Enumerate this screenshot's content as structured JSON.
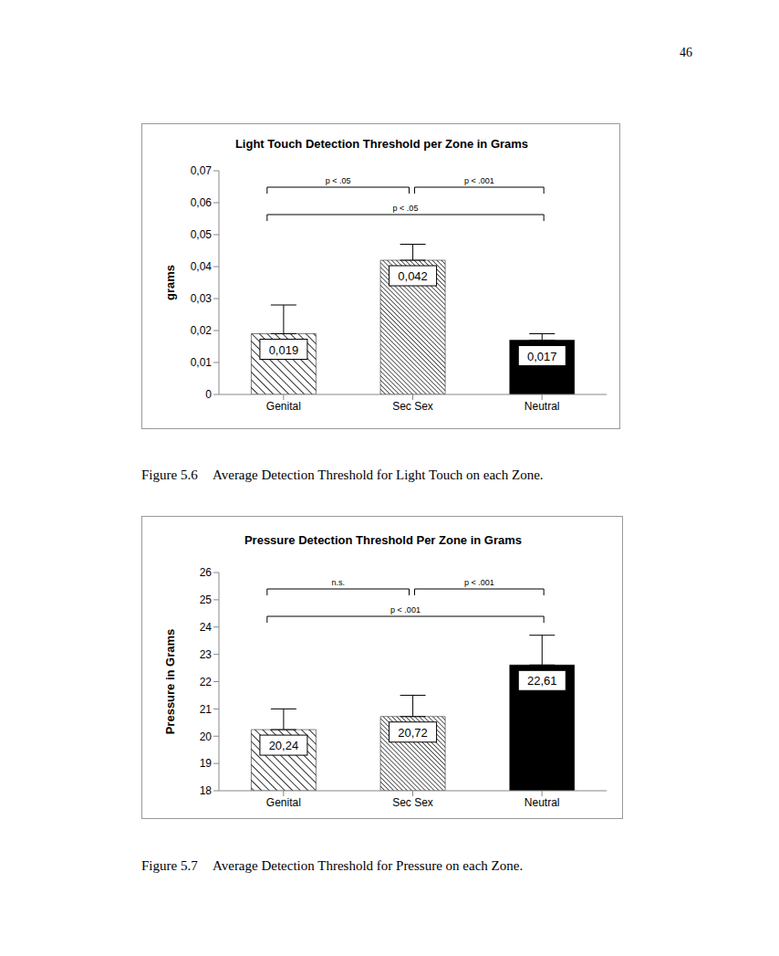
{
  "page_number": "46",
  "chart_data": [
    {
      "type": "bar",
      "title": "Light Touch Detection Threshold per Zone in Grams",
      "y_label": "grams",
      "caption": {
        "label": "Figure 5.6",
        "text": "Average Detection Threshold for Light Touch on each Zone."
      },
      "categories": [
        "Genital",
        "Sec Sex",
        "Neutral"
      ],
      "values": [
        0.019,
        0.042,
        0.017
      ],
      "value_labels": [
        "0,019",
        "0,042",
        "0,017"
      ],
      "errors": [
        0.009,
        0.005,
        0.002
      ],
      "colors": [
        "#333333",
        "#333333",
        "#000000"
      ],
      "ylim": [
        0,
        0.07
      ],
      "yticks": [
        0,
        {
          "value": 0.01,
          "label": "0,01"
        },
        {
          "value": 0.02,
          "label": "0,02"
        },
        {
          "value": 0.03,
          "label": "0,03"
        },
        {
          "value": 0.04,
          "label": "0,04"
        },
        {
          "value": 0.05,
          "label": "0,05"
        },
        {
          "value": 0.06,
          "label": "0,06"
        },
        {
          "value": 0.07,
          "label": "0,07"
        }
      ],
      "grid": false,
      "data_labels": true,
      "annotations": [
        {
          "text": "p < .05",
          "from": "Genital",
          "to": "Sec Sex"
        },
        {
          "text": "p < .001",
          "from": "Sec Sex",
          "to": "Neutral"
        },
        {
          "text": "p < .05",
          "from": "Genital",
          "to": "Neutral"
        }
      ]
    },
    {
      "type": "bar",
      "title": "Pressure Detection Threshold Per Zone in Grams",
      "y_label": "Pressure in Grams",
      "caption": {
        "label": "Figure 5.7",
        "text": "Average Detection Threshold for Pressure on each Zone."
      },
      "categories": [
        "Genital",
        "Sec Sex",
        "Neutral"
      ],
      "values": [
        20.24,
        20.72,
        22.61
      ],
      "value_labels": [
        "20,24",
        "20,72",
        "22,61"
      ],
      "errors": [
        0.76,
        0.78,
        1.09
      ],
      "colors": [
        "#333333",
        "#333333",
        "#000000"
      ],
      "ylim": [
        18,
        26
      ],
      "yticks": [
        18,
        19,
        20,
        21,
        22,
        23,
        24,
        25,
        26
      ],
      "grid": false,
      "data_labels": true,
      "annotations": [
        {
          "text": "n.s.",
          "from": "Genital",
          "to": "Sec Sex"
        },
        {
          "text": "p < .001",
          "from": "Sec Sex",
          "to": "Neutral"
        },
        {
          "text": "p < .001",
          "from": "Genital",
          "to": "Neutral"
        }
      ]
    }
  ]
}
